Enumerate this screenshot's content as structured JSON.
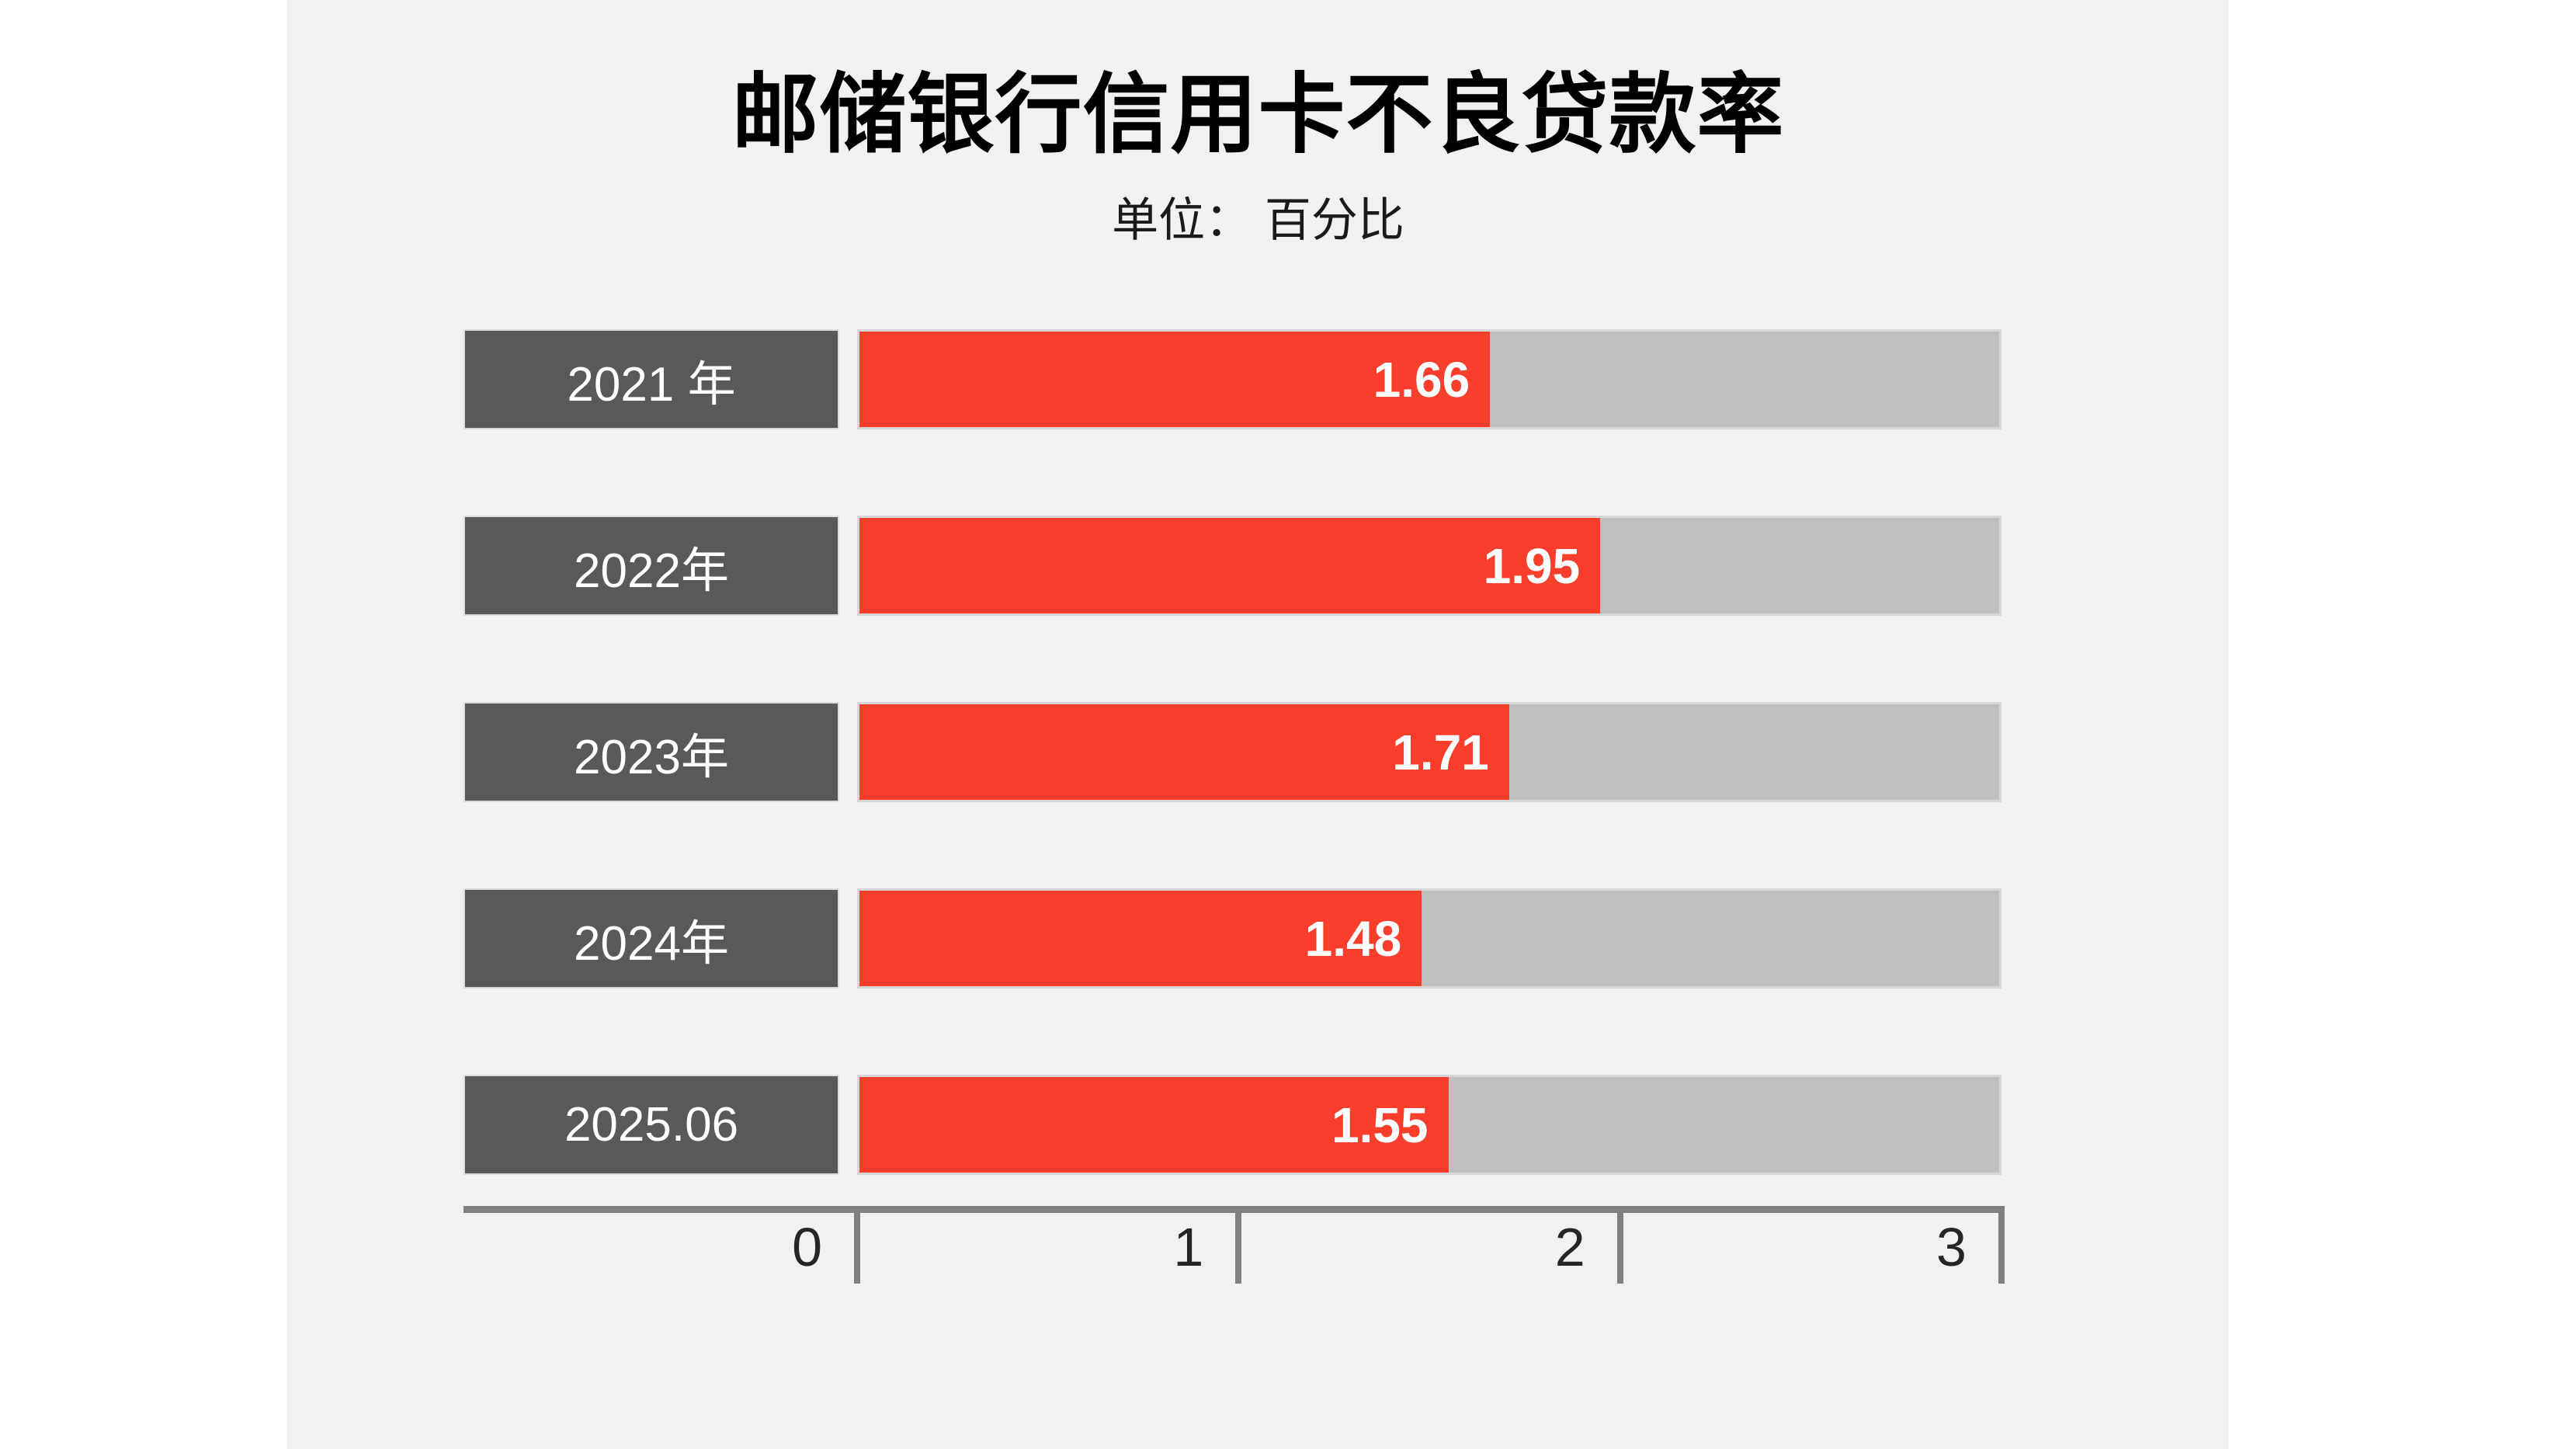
{
  "chart_data": {
    "type": "bar",
    "orientation": "horizontal",
    "title": "邮储银行信用卡不良贷款率",
    "unit_label": "单位： 百分比",
    "categories": [
      "2021 年",
      "2022年",
      "2023年",
      "2024年",
      "2025.06"
    ],
    "values": [
      1.66,
      1.95,
      1.71,
      1.48,
      1.55
    ],
    "value_labels": [
      "1.66",
      "1.95",
      "1.71",
      "1.48",
      "1.55"
    ],
    "xlim": [
      0,
      3
    ],
    "x_ticks": [
      "0",
      "1",
      "2",
      "3"
    ],
    "grid": "off",
    "legend": "none",
    "colors": {
      "bar_fill": "#f93f2c",
      "bar_track": "#bfbfbf",
      "year_label_box": "#595959",
      "canvas_background": "#f1f1f1",
      "page_background": "#ffffff",
      "axis": "#808080",
      "tick_text": "#262626",
      "title_text": "#000000",
      "bar_value_text": "#ffffff",
      "year_label_text": "#ffffff"
    }
  }
}
